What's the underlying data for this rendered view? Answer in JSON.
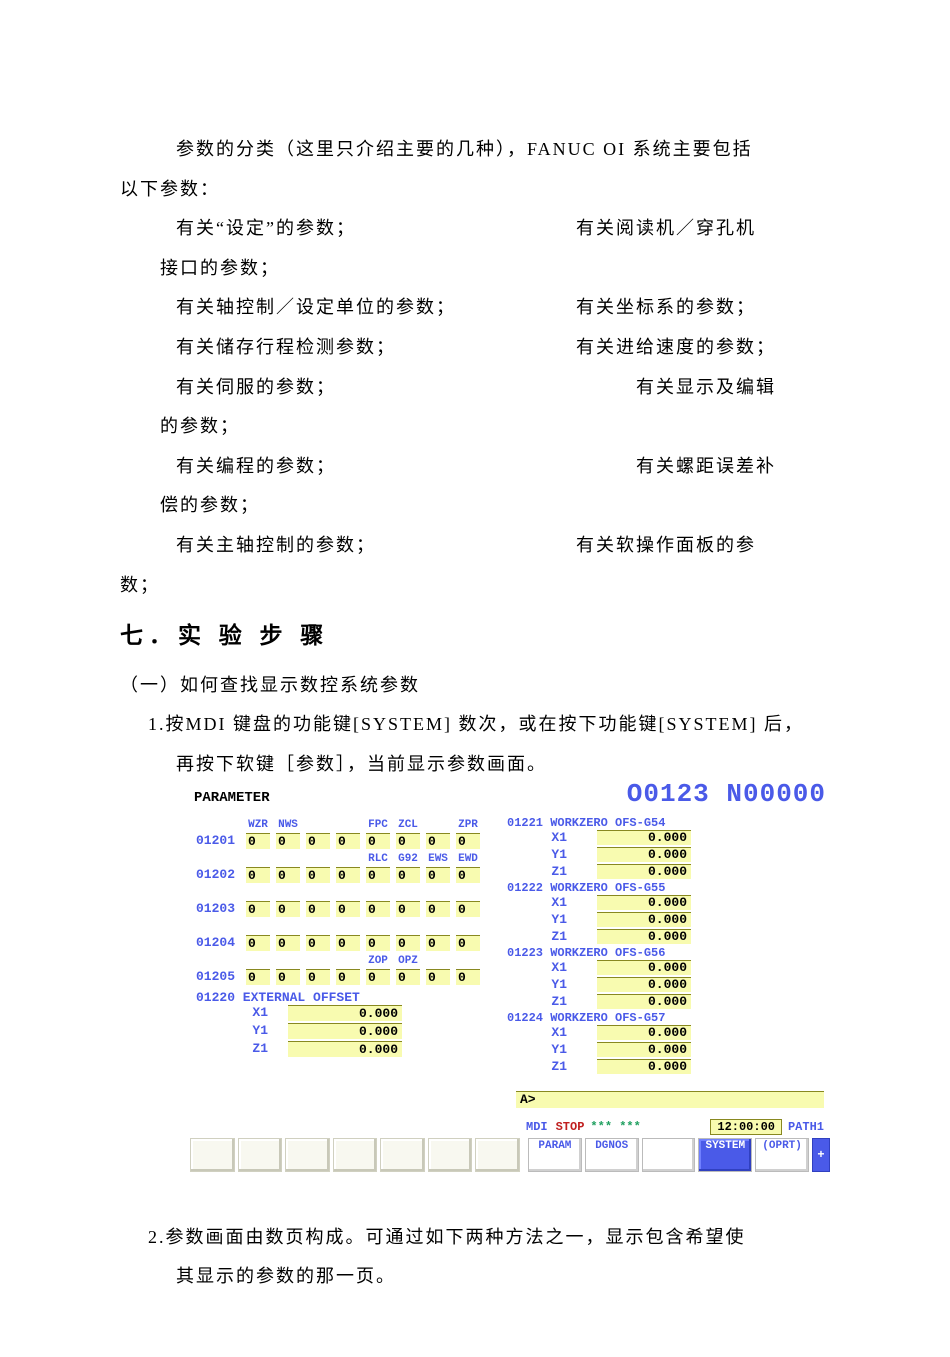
{
  "text": {
    "p1_l1": "参数的分类（这里只介绍主要的几种），FANUC OI 系统主要包括",
    "p1_l2": "以下参数：",
    "row1_l": "有关“设定”的参数；",
    "row1_r": "有关阅读机／穿孔机",
    "row1_c": "接口的参数；",
    "row2_l": "有关轴控制／设定单位的参数；",
    "row2_r": "有关坐标系的参数；",
    "row3_l": "有关储存行程检测参数；",
    "row3_r": "有关进给速度的参数；",
    "row4_l": "有关伺服的参数；",
    "row4_r": "有关显示及编辑",
    "row4_c": "的参数；",
    "row5_l": "有关编程的参数；",
    "row5_r": "有关螺距误差补",
    "row5_c": "偿的参数；",
    "row6_l": "有关主轴控制的参数；",
    "row6_r": "有关软操作面板的参",
    "row6_c": "数；",
    "section7": "七．实 验 步 骤",
    "sub_a": "（一）如何查找显示数控系统参数",
    "step1_l1": "1.按MDI 键盘的功能键[SYSTEM] 数次，或在按下功能键[SYSTEM] 后，",
    "step1_l2": "再按下软键［参数］，当前显示参数画面。",
    "step2_l1": "2.参数画面由数页构成。可通过如下两种方法之一，显示包含希望使",
    "step2_l2": "其显示的参数的那一页。"
  },
  "screen": {
    "title": "PARAMETER",
    "program": "O0123 N00000",
    "bit_params": [
      {
        "num": "01201",
        "labels": [
          "WZR",
          "NWS",
          "",
          "",
          "FPC",
          "ZCL",
          "",
          "ZPR"
        ],
        "vals": [
          "0",
          "0",
          "0",
          "0",
          "0",
          "0",
          "0",
          "0"
        ]
      },
      {
        "num": "01202",
        "labels": [
          "",
          "",
          "",
          "",
          "RLC",
          "G92",
          "EWS",
          "EWD"
        ],
        "vals": [
          "0",
          "0",
          "0",
          "0",
          "0",
          "0",
          "0",
          "0"
        ]
      },
      {
        "num": "01203",
        "labels": [
          "",
          "",
          "",
          "",
          "",
          "",
          "",
          ""
        ],
        "vals": [
          "0",
          "0",
          "0",
          "0",
          "0",
          "0",
          "0",
          "0"
        ]
      },
      {
        "num": "01204",
        "labels": [
          "",
          "",
          "",
          "",
          "",
          "",
          "",
          ""
        ],
        "vals": [
          "0",
          "0",
          "0",
          "0",
          "0",
          "0",
          "0",
          "0"
        ]
      },
      {
        "num": "01205",
        "labels": [
          "",
          "",
          "",
          "",
          "ZOP",
          "OPZ",
          "",
          ""
        ],
        "vals": [
          "0",
          "0",
          "0",
          "0",
          "0",
          "0",
          "0",
          "0"
        ]
      }
    ],
    "external": {
      "title": "01220 EXTERNAL OFFSET",
      "rows": [
        {
          "axis": "X1",
          "val": "0.000"
        },
        {
          "axis": "Y1",
          "val": "0.000"
        },
        {
          "axis": "Z1",
          "val": "0.000"
        }
      ]
    },
    "workzero": [
      {
        "title": "01221 WORKZERO OFS-G54",
        "rows": [
          {
            "axis": "X1",
            "val": "0.000"
          },
          {
            "axis": "Y1",
            "val": "0.000"
          },
          {
            "axis": "Z1",
            "val": "0.000"
          }
        ]
      },
      {
        "title": "01222 WORKZERO OFS-G55",
        "rows": [
          {
            "axis": "X1",
            "val": "0.000"
          },
          {
            "axis": "Y1",
            "val": "0.000"
          },
          {
            "axis": "Z1",
            "val": "0.000"
          }
        ]
      },
      {
        "title": "01223 WORKZERO OFS-G56",
        "rows": [
          {
            "axis": "X1",
            "val": "0.000"
          },
          {
            "axis": "Y1",
            "val": "0.000"
          },
          {
            "axis": "Z1",
            "val": "0.000"
          }
        ]
      },
      {
        "title": "01224 WORKZERO OFS-G57",
        "rows": [
          {
            "axis": "X1",
            "val": "0.000"
          },
          {
            "axis": "Y1",
            "val": "0.000"
          },
          {
            "axis": "Z1",
            "val": "0.000"
          }
        ]
      }
    ],
    "prompt": "A>",
    "status": {
      "mode": "MDI",
      "stop": "STOP",
      "stars": "*** ***",
      "time": "12:00:00",
      "path": "PATH1"
    },
    "softkeys": {
      "left_count": 7,
      "right": [
        "PARAM",
        "DGNOS",
        "",
        "SYSTEM",
        "(OPRT)"
      ],
      "plus": "+"
    }
  }
}
